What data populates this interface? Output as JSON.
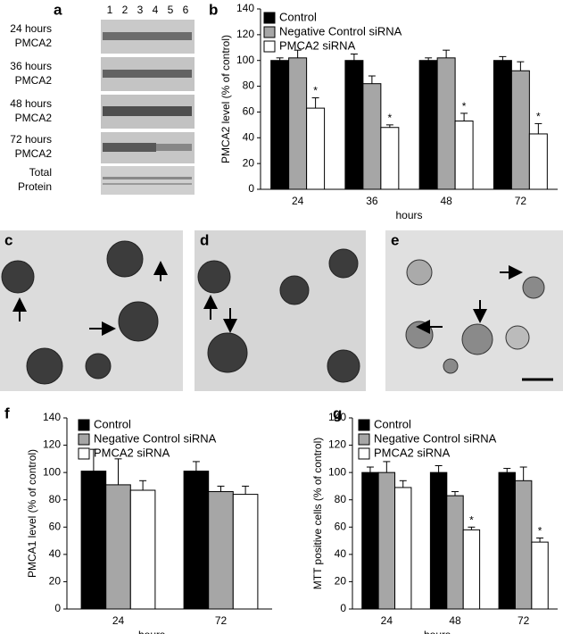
{
  "panels": {
    "blot": {
      "letter": "a",
      "lanes": [
        "1",
        "2",
        "3",
        "4",
        "5",
        "6"
      ],
      "rows": [
        [
          "24 hours",
          "PMCA2"
        ],
        [
          "36 hours",
          "PMCA2"
        ],
        [
          "48 hours",
          "PMCA2"
        ],
        [
          "72 hours",
          "PMCA2"
        ],
        [
          "Total",
          "Protein"
        ]
      ]
    },
    "images": [
      {
        "letter": "c"
      },
      {
        "letter": "d"
      },
      {
        "letter": "e"
      }
    ]
  },
  "chart_data": [
    {
      "type": "bar",
      "panel": "b",
      "ylabel": "PMCA2 level (% of control)",
      "xlabel": "hours",
      "categories": [
        "24",
        "36",
        "48",
        "72"
      ],
      "ylim": [
        0,
        140
      ],
      "yticks": [
        0,
        20,
        40,
        60,
        80,
        100,
        120,
        140
      ],
      "legend": "upper left",
      "series": [
        {
          "name": "Control",
          "color": "#000000",
          "values": [
            100,
            100,
            100,
            100
          ],
          "errors": [
            2,
            5,
            2,
            3
          ]
        },
        {
          "name": "Negative Control siRNA",
          "color": "#a6a6a6",
          "values": [
            102,
            82,
            102,
            92
          ],
          "errors": [
            6,
            6,
            6,
            7
          ]
        },
        {
          "name": "PMCA2 siRNA",
          "color": "#ffffff",
          "values": [
            63,
            48,
            53,
            43
          ],
          "errors": [
            8,
            2,
            6,
            8
          ],
          "significance": [
            "*",
            "*",
            "*",
            "*"
          ]
        }
      ]
    },
    {
      "type": "bar",
      "panel": "f",
      "ylabel": "PMCA1 level (% of control)",
      "xlabel": "hours",
      "categories": [
        "24",
        "72"
      ],
      "ylim": [
        0,
        140
      ],
      "yticks": [
        0,
        20,
        40,
        60,
        80,
        100,
        120,
        140
      ],
      "legend": "upper left",
      "series": [
        {
          "name": "Control",
          "color": "#000000",
          "values": [
            101,
            101
          ],
          "errors": [
            16,
            7
          ]
        },
        {
          "name": "Negative Control siRNA",
          "color": "#a6a6a6",
          "values": [
            91,
            86
          ],
          "errors": [
            19,
            4
          ]
        },
        {
          "name": "PMCA2 siRNA",
          "color": "#ffffff",
          "values": [
            87,
            84
          ],
          "errors": [
            7,
            6
          ]
        }
      ]
    },
    {
      "type": "bar",
      "panel": "g",
      "ylabel": "MTT positive cells (% of control)",
      "xlabel": "hours",
      "categories": [
        "24",
        "48",
        "72"
      ],
      "ylim": [
        0,
        140
      ],
      "yticks": [
        0,
        20,
        40,
        60,
        80,
        100,
        120,
        140
      ],
      "legend": "upper left",
      "series": [
        {
          "name": "Control",
          "color": "#000000",
          "values": [
            100,
            100,
            100
          ],
          "errors": [
            4,
            5,
            3
          ]
        },
        {
          "name": "Negative Control siRNA",
          "color": "#a6a6a6",
          "values": [
            100,
            83,
            94
          ],
          "errors": [
            8,
            3,
            10
          ]
        },
        {
          "name": "PMCA2 siRNA",
          "color": "#ffffff",
          "values": [
            89,
            58,
            49
          ],
          "errors": [
            5,
            2,
            3
          ],
          "significance": [
            null,
            "*",
            "*"
          ]
        }
      ]
    }
  ]
}
